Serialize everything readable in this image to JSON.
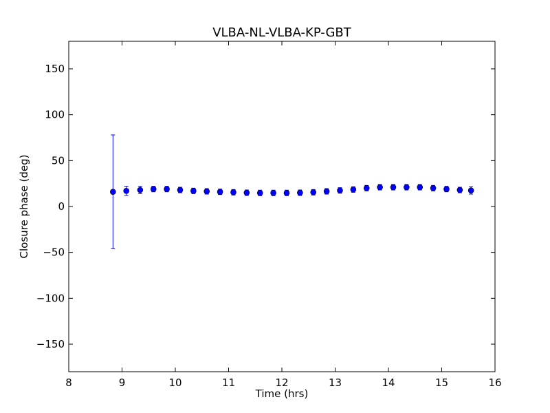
{
  "chart_data": {
    "type": "scatter",
    "title": "VLBA-NL-VLBA-KP-GBT",
    "xlabel": "Time (hrs)",
    "ylabel": "Closure phase (deg)",
    "xlim": [
      8,
      16
    ],
    "ylim": [
      -180,
      180
    ],
    "xticks": [
      8,
      9,
      10,
      11,
      12,
      13,
      14,
      15,
      16
    ],
    "xtick_labels": [
      "8",
      "9",
      "10",
      "11",
      "12",
      "13",
      "14",
      "15",
      "16"
    ],
    "yticks": [
      -150,
      -100,
      -50,
      0,
      50,
      100,
      150
    ],
    "ytick_labels": [
      "−150",
      "−100",
      "−50",
      "0",
      "50",
      "100",
      "150"
    ],
    "grid": false,
    "marker_color": "#0000ff",
    "series": [
      {
        "x": [
          8.83,
          9.08,
          9.34,
          9.59,
          9.84,
          10.09,
          10.34,
          10.59,
          10.84,
          11.09,
          11.34,
          11.59,
          11.84,
          12.09,
          12.34,
          12.59,
          12.84,
          13.09,
          13.34,
          13.59,
          13.84,
          14.09,
          14.34,
          14.59,
          14.84,
          15.09,
          15.34,
          15.55
        ],
        "y": [
          16,
          17,
          18,
          19,
          19,
          18,
          17,
          16.5,
          16,
          15.5,
          15,
          14.8,
          14.8,
          14.8,
          15,
          15.5,
          16.5,
          17.5,
          18.5,
          20,
          21,
          21,
          21,
          21,
          20,
          19,
          18,
          17.5
        ],
        "yerr": [
          62,
          5,
          4,
          3,
          3,
          3,
          3,
          3,
          3,
          3,
          3,
          3,
          3,
          3,
          3,
          3,
          3,
          3,
          3,
          3,
          3,
          3,
          3,
          3,
          3,
          3,
          3,
          4
        ]
      }
    ]
  }
}
